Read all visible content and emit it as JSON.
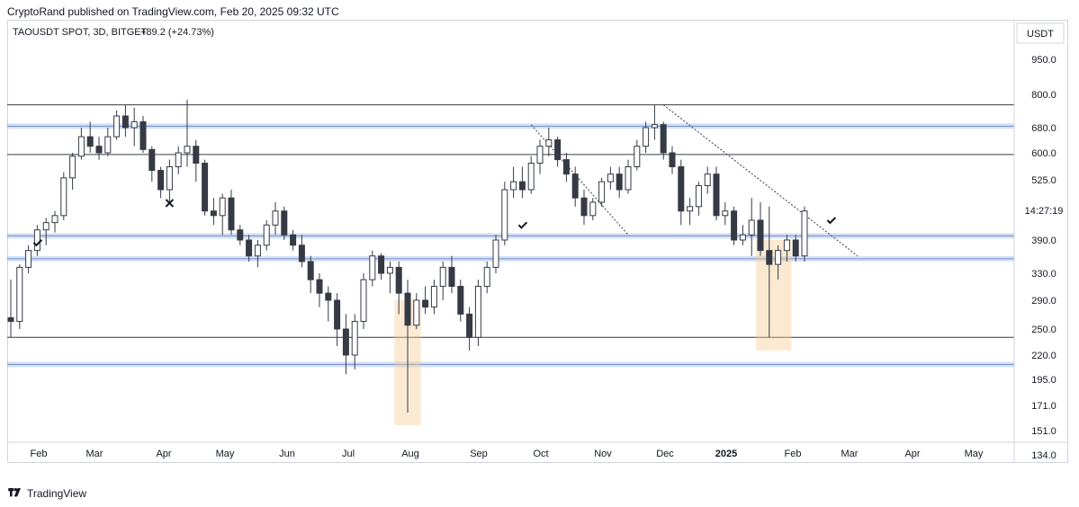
{
  "header": {
    "published_line": "CryptoRand published on TradingView.com, Feb 20, 2025 09:32 UTC"
  },
  "footer": {
    "brand": "TradingView",
    "logo_icon": "tradingview-logo-icon"
  },
  "colors": {
    "up_candle": "#ffffff",
    "down_candle": "#363a45",
    "candle_outline": "#363a45",
    "level_band": "#9fbde6",
    "horizontal_line": "#363a45",
    "highlight_box": "#f7c98b",
    "grid": "#e5e7eb"
  },
  "chart_data": {
    "type": "candlestick",
    "symbol_line": "TAOUSDT SPOT, 3D, BITGET",
    "change": "+89.2 (+24.73%)",
    "currency": "USDT",
    "countdown": "14:27:19",
    "y_scale": "log",
    "ylim": [
      130,
      1200
    ],
    "y_ticks": [
      "950.0",
      "800.0",
      "680.0",
      "600.0",
      "525.0",
      "390.0",
      "330.0",
      "290.0",
      "250.0",
      "220.0",
      "195.0",
      "171.0",
      "151.0",
      "134.0"
    ],
    "y_tick_values": [
      950,
      800,
      680,
      600,
      525,
      390,
      330,
      290,
      250,
      220,
      195,
      171,
      151,
      134
    ],
    "x_ticks": [
      "Feb",
      "Mar",
      "Apr",
      "May",
      "Jun",
      "Jul",
      "Aug",
      "Sep",
      "Oct",
      "Nov",
      "Dec",
      "2025",
      "Feb",
      "Mar",
      "Apr",
      "May"
    ],
    "grid": false,
    "horizontal_levels": [
      {
        "style": "line",
        "value": 760
      },
      {
        "style": "band",
        "value": 685
      },
      {
        "style": "line",
        "value": 595
      },
      {
        "style": "band",
        "value": 398
      },
      {
        "style": "band",
        "value": 355
      },
      {
        "style": "line",
        "value": 240
      },
      {
        "style": "band",
        "value": 210
      }
    ],
    "trendlines": [
      {
        "from": {
          "x_index": 59,
          "price": 690
        },
        "to": {
          "x_index": 70,
          "price": 400
        }
      },
      {
        "from": {
          "x_index": 74,
          "price": 760
        },
        "to": {
          "x_index": 96,
          "price": 360
        }
      }
    ],
    "highlight_zones": [
      {
        "from_index": 44,
        "to_index": 47,
        "low": 155,
        "high": 290
      },
      {
        "from_index": 85,
        "to_index": 89,
        "low": 225,
        "high": 390
      }
    ],
    "markers": [
      {
        "type": "check",
        "x_index": 3,
        "price": 385
      },
      {
        "type": "cross",
        "x_index": 18,
        "price": 468
      },
      {
        "type": "check",
        "x_index": 58,
        "price": 420
      },
      {
        "type": "check",
        "x_index": 93,
        "price": 430
      }
    ],
    "candles": [
      [
        265,
        320,
        240,
        260
      ],
      [
        260,
        345,
        250,
        340
      ],
      [
        340,
        380,
        330,
        370
      ],
      [
        370,
        420,
        360,
        410
      ],
      [
        410,
        435,
        380,
        425
      ],
      [
        425,
        450,
        405,
        440
      ],
      [
        440,
        545,
        430,
        530
      ],
      [
        530,
        600,
        500,
        590
      ],
      [
        590,
        680,
        580,
        650
      ],
      [
        650,
        700,
        600,
        620
      ],
      [
        620,
        650,
        580,
        600
      ],
      [
        600,
        680,
        590,
        650
      ],
      [
        650,
        740,
        640,
        720
      ],
      [
        720,
        760,
        650,
        680
      ],
      [
        680,
        750,
        620,
        700
      ],
      [
        700,
        720,
        600,
        610
      ],
      [
        610,
        620,
        520,
        550
      ],
      [
        550,
        560,
        480,
        500
      ],
      [
        500,
        580,
        470,
        560
      ],
      [
        560,
        620,
        540,
        600
      ],
      [
        600,
        780,
        560,
        620
      ],
      [
        620,
        640,
        520,
        570
      ],
      [
        570,
        580,
        440,
        450
      ],
      [
        450,
        480,
        420,
        440
      ],
      [
        440,
        490,
        400,
        480
      ],
      [
        480,
        500,
        400,
        410
      ],
      [
        410,
        420,
        380,
        390
      ],
      [
        390,
        400,
        350,
        360
      ],
      [
        360,
        390,
        340,
        380
      ],
      [
        380,
        430,
        370,
        420
      ],
      [
        420,
        470,
        400,
        450
      ],
      [
        450,
        460,
        390,
        400
      ],
      [
        400,
        410,
        370,
        380
      ],
      [
        380,
        400,
        340,
        350
      ],
      [
        350,
        360,
        300,
        320
      ],
      [
        320,
        330,
        280,
        300
      ],
      [
        300,
        310,
        260,
        290
      ],
      [
        290,
        300,
        230,
        250
      ],
      [
        250,
        270,
        200,
        220
      ],
      [
        220,
        270,
        205,
        260
      ],
      [
        260,
        330,
        250,
        320
      ],
      [
        320,
        370,
        310,
        360
      ],
      [
        360,
        365,
        320,
        330
      ],
      [
        330,
        350,
        300,
        340
      ],
      [
        340,
        350,
        270,
        300
      ],
      [
        300,
        320,
        165,
        255
      ],
      [
        255,
        300,
        250,
        290
      ],
      [
        290,
        310,
        270,
        280
      ],
      [
        280,
        320,
        270,
        310
      ],
      [
        310,
        350,
        290,
        340
      ],
      [
        340,
        360,
        300,
        310
      ],
      [
        310,
        320,
        260,
        270
      ],
      [
        270,
        280,
        225,
        240
      ],
      [
        240,
        320,
        230,
        310
      ],
      [
        310,
        350,
        300,
        340
      ],
      [
        340,
        400,
        330,
        390
      ],
      [
        390,
        520,
        380,
        500
      ],
      [
        500,
        560,
        480,
        520
      ],
      [
        520,
        560,
        480,
        500
      ],
      [
        500,
        590,
        490,
        570
      ],
      [
        570,
        640,
        540,
        620
      ],
      [
        620,
        680,
        590,
        640
      ],
      [
        640,
        650,
        560,
        580
      ],
      [
        580,
        600,
        520,
        540
      ],
      [
        540,
        560,
        460,
        480
      ],
      [
        480,
        500,
        420,
        440
      ],
      [
        440,
        480,
        430,
        470
      ],
      [
        470,
        530,
        460,
        520
      ],
      [
        520,
        560,
        500,
        540
      ],
      [
        540,
        560,
        480,
        500
      ],
      [
        500,
        580,
        490,
        560
      ],
      [
        560,
        640,
        550,
        620
      ],
      [
        620,
        700,
        600,
        680
      ],
      [
        680,
        760,
        640,
        690
      ],
      [
        690,
        700,
        580,
        600
      ],
      [
        600,
        620,
        540,
        560
      ],
      [
        560,
        580,
        420,
        450
      ],
      [
        450,
        480,
        420,
        460
      ],
      [
        460,
        520,
        440,
        510
      ],
      [
        510,
        560,
        490,
        540
      ],
      [
        540,
        560,
        430,
        440
      ],
      [
        440,
        470,
        420,
        450
      ],
      [
        450,
        460,
        380,
        390
      ],
      [
        390,
        420,
        380,
        400
      ],
      [
        400,
        480,
        360,
        430
      ],
      [
        430,
        470,
        360,
        370
      ],
      [
        370,
        460,
        240,
        345
      ],
      [
        345,
        380,
        320,
        370
      ],
      [
        370,
        400,
        350,
        390
      ],
      [
        390,
        400,
        350,
        360
      ],
      [
        360,
        460,
        350,
        450
      ]
    ]
  }
}
